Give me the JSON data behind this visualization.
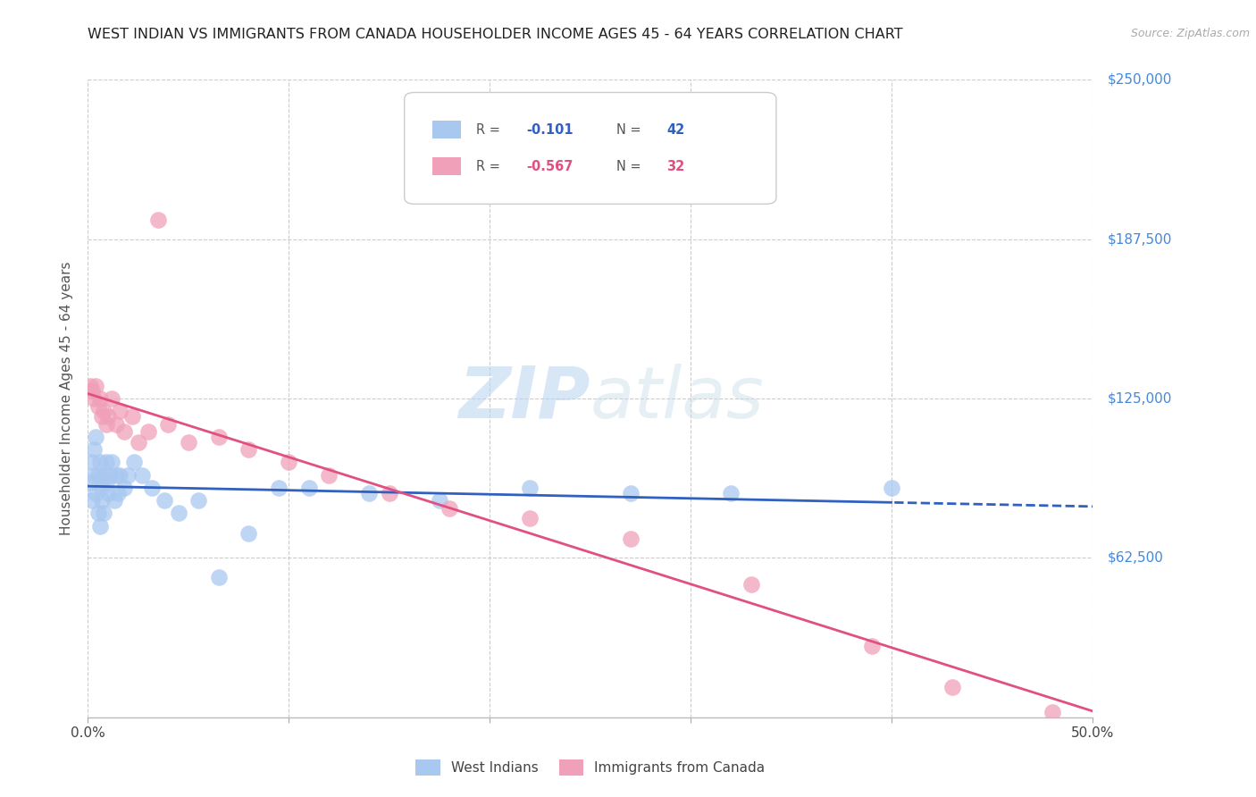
{
  "title": "WEST INDIAN VS IMMIGRANTS FROM CANADA HOUSEHOLDER INCOME AGES 45 - 64 YEARS CORRELATION CHART",
  "source": "Source: ZipAtlas.com",
  "ylabel": "Householder Income Ages 45 - 64 years",
  "xlim": [
    0.0,
    0.5
  ],
  "ylim": [
    0,
    250000
  ],
  "yticks": [
    0,
    62500,
    125000,
    187500,
    250000
  ],
  "ytick_labels": [
    "",
    "$62,500",
    "$125,000",
    "$187,500",
    "$250,000"
  ],
  "xticks": [
    0.0,
    0.1,
    0.2,
    0.3,
    0.4,
    0.5
  ],
  "xtick_labels": [
    "0.0%",
    "",
    "",
    "",
    "",
    "50.0%"
  ],
  "series1_label": "West Indians",
  "series2_label": "Immigrants from Canada",
  "series1_color": "#a8c8f0",
  "series2_color": "#f0a0b8",
  "series1_line_color": "#3060c0",
  "series2_line_color": "#e05080",
  "background_color": "#ffffff",
  "grid_color": "#cccccc",
  "title_color": "#222222",
  "axis_label_color": "#555555",
  "ytick_color": "#4488dd",
  "watermark_zip": "ZIP",
  "watermark_atlas": "atlas",
  "r1_label": "R = ",
  "r1_val": "-0.101",
  "n1_label": "N = ",
  "n1_val": "42",
  "r2_label": "R = ",
  "r2_val": "-0.567",
  "n2_label": "N = ",
  "n2_val": "32",
  "west_indian_x": [
    0.001,
    0.002,
    0.002,
    0.003,
    0.003,
    0.004,
    0.004,
    0.005,
    0.005,
    0.006,
    0.006,
    0.007,
    0.007,
    0.008,
    0.008,
    0.009,
    0.009,
    0.01,
    0.011,
    0.012,
    0.013,
    0.014,
    0.015,
    0.016,
    0.018,
    0.02,
    0.023,
    0.027,
    0.032,
    0.038,
    0.045,
    0.055,
    0.065,
    0.08,
    0.095,
    0.11,
    0.14,
    0.175,
    0.22,
    0.27,
    0.32,
    0.4
  ],
  "west_indian_y": [
    92000,
    85000,
    100000,
    95000,
    105000,
    88000,
    110000,
    80000,
    95000,
    75000,
    100000,
    90000,
    85000,
    95000,
    80000,
    100000,
    92000,
    88000,
    95000,
    100000,
    85000,
    95000,
    88000,
    95000,
    90000,
    95000,
    100000,
    95000,
    90000,
    85000,
    80000,
    85000,
    55000,
    72000,
    90000,
    90000,
    88000,
    85000,
    90000,
    88000,
    88000,
    90000
  ],
  "canada_x": [
    0.001,
    0.002,
    0.003,
    0.004,
    0.005,
    0.006,
    0.007,
    0.008,
    0.009,
    0.01,
    0.012,
    0.014,
    0.016,
    0.018,
    0.022,
    0.025,
    0.03,
    0.035,
    0.04,
    0.05,
    0.065,
    0.08,
    0.1,
    0.12,
    0.15,
    0.18,
    0.22,
    0.27,
    0.33,
    0.39,
    0.43,
    0.48
  ],
  "canada_y": [
    130000,
    128000,
    125000,
    130000,
    122000,
    125000,
    118000,
    120000,
    115000,
    118000,
    125000,
    115000,
    120000,
    112000,
    118000,
    108000,
    112000,
    195000,
    115000,
    108000,
    110000,
    105000,
    100000,
    95000,
    88000,
    82000,
    78000,
    70000,
    52000,
    28000,
    12000,
    2000
  ]
}
